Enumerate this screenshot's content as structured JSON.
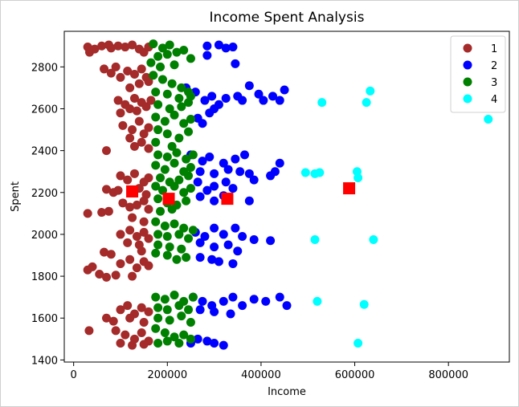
{
  "chart_data": {
    "type": "scatter",
    "title": "Income Spent Analysis",
    "xlabel": "Income",
    "ylabel": "Spent",
    "xlim": [
      -20000,
      930000
    ],
    "ylim": [
      1390,
      2970
    ],
    "xticks": [
      0,
      200000,
      400000,
      600000,
      800000
    ],
    "yticks": [
      1400,
      1600,
      1800,
      2000,
      2200,
      2400,
      2600,
      2800
    ],
    "grid": false,
    "legend_position": "top-right",
    "series": [
      {
        "name": "1",
        "color": "#a52a2a",
        "points": [
          [
            30000,
            2895
          ],
          [
            34000,
            2870
          ],
          [
            45000,
            2885
          ],
          [
            60000,
            2900
          ],
          [
            75000,
            2905
          ],
          [
            80000,
            2890
          ],
          [
            95000,
            2900
          ],
          [
            110000,
            2895
          ],
          [
            125000,
            2905
          ],
          [
            140000,
            2885
          ],
          [
            150000,
            2870
          ],
          [
            160000,
            2895
          ],
          [
            65000,
            2790
          ],
          [
            80000,
            2770
          ],
          [
            90000,
            2800
          ],
          [
            100000,
            2750
          ],
          [
            115000,
            2780
          ],
          [
            130000,
            2765
          ],
          [
            145000,
            2790
          ],
          [
            155000,
            2750
          ],
          [
            120000,
            2700
          ],
          [
            140000,
            2720
          ],
          [
            160000,
            2730
          ],
          [
            95000,
            2640
          ],
          [
            110000,
            2620
          ],
          [
            120000,
            2600
          ],
          [
            130000,
            2650
          ],
          [
            145000,
            2630
          ],
          [
            155000,
            2610
          ],
          [
            165000,
            2640
          ],
          [
            100000,
            2580
          ],
          [
            135000,
            2590
          ],
          [
            105000,
            2520
          ],
          [
            125000,
            2500
          ],
          [
            140000,
            2540
          ],
          [
            150000,
            2480
          ],
          [
            160000,
            2510
          ],
          [
            120000,
            2460
          ],
          [
            145000,
            2440
          ],
          [
            70000,
            2400
          ],
          [
            130000,
            2420
          ],
          [
            160000,
            2410
          ],
          [
            100000,
            2280
          ],
          [
            115000,
            2260
          ],
          [
            130000,
            2290
          ],
          [
            150000,
            2250
          ],
          [
            160000,
            2270
          ],
          [
            70000,
            2215
          ],
          [
            85000,
            2200
          ],
          [
            95000,
            2210
          ],
          [
            140000,
            2220
          ],
          [
            155000,
            2190
          ],
          [
            105000,
            2150
          ],
          [
            120000,
            2130
          ],
          [
            135000,
            2140
          ],
          [
            150000,
            2160
          ],
          [
            160000,
            2120
          ],
          [
            30000,
            2100
          ],
          [
            60000,
            2105
          ],
          [
            75000,
            2110
          ],
          [
            125000,
            2080
          ],
          [
            150000,
            2060
          ],
          [
            100000,
            2000
          ],
          [
            120000,
            2020
          ],
          [
            135000,
            1990
          ],
          [
            150000,
            2010
          ],
          [
            160000,
            1980
          ],
          [
            115000,
            1960
          ],
          [
            140000,
            1950
          ],
          [
            65000,
            1915
          ],
          [
            80000,
            1905
          ],
          [
            145000,
            1920
          ],
          [
            100000,
            1860
          ],
          [
            120000,
            1880
          ],
          [
            135000,
            1840
          ],
          [
            150000,
            1870
          ],
          [
            160000,
            1850
          ],
          [
            30000,
            1830
          ],
          [
            40000,
            1845
          ],
          [
            55000,
            1810
          ],
          [
            70000,
            1795
          ],
          [
            90000,
            1805
          ],
          [
            125000,
            1800
          ],
          [
            100000,
            1640
          ],
          [
            115000,
            1660
          ],
          [
            130000,
            1620
          ],
          [
            145000,
            1650
          ],
          [
            160000,
            1630
          ],
          [
            70000,
            1600
          ],
          [
            85000,
            1585
          ],
          [
            120000,
            1600
          ],
          [
            150000,
            1580
          ],
          [
            90000,
            1540
          ],
          [
            110000,
            1520
          ],
          [
            130000,
            1500
          ],
          [
            145000,
            1530
          ],
          [
            160000,
            1490
          ],
          [
            33000,
            1540
          ],
          [
            100000,
            1480
          ],
          [
            125000,
            1470
          ],
          [
            150000,
            1475
          ]
        ]
      },
      {
        "name": "2",
        "color": "#0000ff",
        "points": [
          [
            285000,
            2900
          ],
          [
            310000,
            2905
          ],
          [
            325000,
            2890
          ],
          [
            340000,
            2895
          ],
          [
            285000,
            2855
          ],
          [
            345000,
            2815
          ],
          [
            240000,
            2700
          ],
          [
            260000,
            2680
          ],
          [
            280000,
            2640
          ],
          [
            295000,
            2660
          ],
          [
            310000,
            2620
          ],
          [
            325000,
            2650
          ],
          [
            350000,
            2660
          ],
          [
            360000,
            2640
          ],
          [
            375000,
            2710
          ],
          [
            395000,
            2670
          ],
          [
            405000,
            2640
          ],
          [
            425000,
            2660
          ],
          [
            440000,
            2640
          ],
          [
            450000,
            2690
          ],
          [
            265000,
            2555
          ],
          [
            290000,
            2580
          ],
          [
            300000,
            2600
          ],
          [
            275000,
            2530
          ],
          [
            250000,
            2380
          ],
          [
            275000,
            2350
          ],
          [
            290000,
            2370
          ],
          [
            320000,
            2340
          ],
          [
            345000,
            2360
          ],
          [
            365000,
            2380
          ],
          [
            270000,
            2300
          ],
          [
            300000,
            2290
          ],
          [
            330000,
            2310
          ],
          [
            355000,
            2300
          ],
          [
            375000,
            2290
          ],
          [
            385000,
            2260
          ],
          [
            420000,
            2280
          ],
          [
            430000,
            2300
          ],
          [
            440000,
            2340
          ],
          [
            265000,
            2250
          ],
          [
            285000,
            2210
          ],
          [
            300000,
            2230
          ],
          [
            325000,
            2250
          ],
          [
            340000,
            2220
          ],
          [
            270000,
            2180
          ],
          [
            300000,
            2160
          ],
          [
            320000,
            2185
          ],
          [
            375000,
            2160
          ],
          [
            260000,
            2010
          ],
          [
            280000,
            1990
          ],
          [
            300000,
            2030
          ],
          [
            320000,
            2000
          ],
          [
            345000,
            2030
          ],
          [
            360000,
            1990
          ],
          [
            385000,
            1975
          ],
          [
            420000,
            1970
          ],
          [
            270000,
            1960
          ],
          [
            300000,
            1940
          ],
          [
            330000,
            1950
          ],
          [
            350000,
            1920
          ],
          [
            270000,
            1890
          ],
          [
            295000,
            1880
          ],
          [
            310000,
            1870
          ],
          [
            340000,
            1860
          ],
          [
            255000,
            1700
          ],
          [
            275000,
            1680
          ],
          [
            295000,
            1660
          ],
          [
            320000,
            1680
          ],
          [
            340000,
            1700
          ],
          [
            360000,
            1660
          ],
          [
            385000,
            1690
          ],
          [
            410000,
            1680
          ],
          [
            440000,
            1700
          ],
          [
            455000,
            1660
          ],
          [
            270000,
            1640
          ],
          [
            300000,
            1630
          ],
          [
            335000,
            1620
          ],
          [
            250000,
            1480
          ],
          [
            265000,
            1500
          ],
          [
            285000,
            1490
          ],
          [
            300000,
            1480
          ],
          [
            320000,
            1470
          ]
        ]
      },
      {
        "name": "3",
        "color": "#008000",
        "points": [
          [
            170000,
            2910
          ],
          [
            190000,
            2890
          ],
          [
            205000,
            2905
          ],
          [
            220000,
            2870
          ],
          [
            180000,
            2850
          ],
          [
            200000,
            2860
          ],
          [
            235000,
            2880
          ],
          [
            250000,
            2840
          ],
          [
            165000,
            2820
          ],
          [
            185000,
            2800
          ],
          [
            215000,
            2810
          ],
          [
            170000,
            2760
          ],
          [
            190000,
            2740
          ],
          [
            210000,
            2720
          ],
          [
            230000,
            2700
          ],
          [
            245000,
            2680
          ],
          [
            175000,
            2680
          ],
          [
            200000,
            2670
          ],
          [
            225000,
            2650
          ],
          [
            250000,
            2660
          ],
          [
            180000,
            2620
          ],
          [
            205000,
            2600
          ],
          [
            230000,
            2610
          ],
          [
            245000,
            2630
          ],
          [
            175000,
            2560
          ],
          [
            195000,
            2540
          ],
          [
            215000,
            2570
          ],
          [
            235000,
            2530
          ],
          [
            250000,
            2550
          ],
          [
            180000,
            2500
          ],
          [
            200000,
            2480
          ],
          [
            225000,
            2460
          ],
          [
            245000,
            2490
          ],
          [
            175000,
            2440
          ],
          [
            210000,
            2420
          ],
          [
            180000,
            2380
          ],
          [
            200000,
            2370
          ],
          [
            220000,
            2390
          ],
          [
            240000,
            2360
          ],
          [
            255000,
            2380
          ],
          [
            175000,
            2330
          ],
          [
            195000,
            2310
          ],
          [
            215000,
            2340
          ],
          [
            235000,
            2300
          ],
          [
            250000,
            2320
          ],
          [
            185000,
            2270
          ],
          [
            205000,
            2250
          ],
          [
            225000,
            2260
          ],
          [
            245000,
            2280
          ],
          [
            175000,
            2230
          ],
          [
            190000,
            2210
          ],
          [
            215000,
            2230
          ],
          [
            235000,
            2200
          ],
          [
            250000,
            2220
          ],
          [
            180000,
            2170
          ],
          [
            200000,
            2150
          ],
          [
            220000,
            2140
          ],
          [
            240000,
            2160
          ],
          [
            185000,
            2110
          ],
          [
            210000,
            2120
          ],
          [
            175000,
            2060
          ],
          [
            195000,
            2040
          ],
          [
            215000,
            2050
          ],
          [
            235000,
            2030
          ],
          [
            255000,
            2020
          ],
          [
            180000,
            2000
          ],
          [
            200000,
            1990
          ],
          [
            225000,
            2000
          ],
          [
            245000,
            1980
          ],
          [
            180000,
            1950
          ],
          [
            205000,
            1940
          ],
          [
            230000,
            1930
          ],
          [
            175000,
            1910
          ],
          [
            200000,
            1900
          ],
          [
            220000,
            1880
          ],
          [
            240000,
            1890
          ],
          [
            175000,
            1700
          ],
          [
            195000,
            1690
          ],
          [
            215000,
            1710
          ],
          [
            235000,
            1680
          ],
          [
            255000,
            1700
          ],
          [
            180000,
            1650
          ],
          [
            200000,
            1640
          ],
          [
            225000,
            1660
          ],
          [
            245000,
            1640
          ],
          [
            180000,
            1600
          ],
          [
            205000,
            1590
          ],
          [
            230000,
            1610
          ],
          [
            250000,
            1580
          ],
          [
            175000,
            1550
          ],
          [
            195000,
            1530
          ],
          [
            215000,
            1510
          ],
          [
            235000,
            1520
          ],
          [
            250000,
            1500
          ],
          [
            180000,
            1480
          ],
          [
            200000,
            1490
          ],
          [
            225000,
            1480
          ]
        ]
      },
      {
        "name": "4",
        "color": "#00ffff",
        "points": [
          [
            530000,
            2630
          ],
          [
            625000,
            2630
          ],
          [
            633000,
            2685
          ],
          [
            885000,
            2550
          ],
          [
            495000,
            2295
          ],
          [
            515000,
            2290
          ],
          [
            525000,
            2295
          ],
          [
            605000,
            2300
          ],
          [
            607000,
            2270
          ],
          [
            515000,
            1975
          ],
          [
            640000,
            1975
          ],
          [
            520000,
            1680
          ],
          [
            620000,
            1665
          ],
          [
            607000,
            1480
          ]
        ]
      }
    ],
    "centroids": {
      "color": "#ff0000",
      "points": [
        [
          125000,
          2205
        ],
        [
          203000,
          2170
        ],
        [
          328000,
          2170
        ],
        [
          588000,
          2220
        ]
      ]
    }
  }
}
